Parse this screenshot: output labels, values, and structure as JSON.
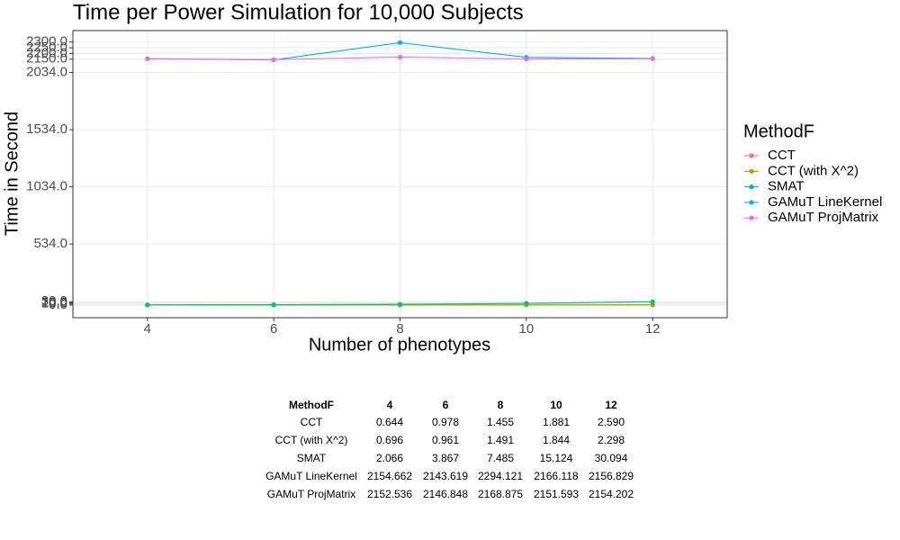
{
  "chart_data": {
    "type": "line",
    "title": "Time per Power Simulation for 10,000 Subjects",
    "x_label": "Number of phenotypes",
    "y_label": "Time in Second",
    "legend_title": "MethodF",
    "x": [
      4,
      6,
      8,
      10,
      12
    ],
    "series": [
      {
        "name": "CCT",
        "color": "#F8766D",
        "values": [
          0.644,
          0.978,
          1.455,
          1.881,
          2.59
        ]
      },
      {
        "name": "CCT (with X^2)",
        "color": "#A3A500",
        "values": [
          0.696,
          0.961,
          1.491,
          1.844,
          2.298
        ]
      },
      {
        "name": "SMAT",
        "color": "#00BF7D",
        "values": [
          2.066,
          3.867,
          7.485,
          15.124,
          30.094
        ]
      },
      {
        "name": "GAMuT LineKernel",
        "color": "#00B0F6",
        "values": [
          2154.662,
          2143.619,
          2294.121,
          2166.118,
          2156.829
        ]
      },
      {
        "name": "GAMuT ProjMatrix",
        "color": "#E76BF3",
        "values": [
          2152.536,
          2146.848,
          2168.875,
          2151.593,
          2154.202
        ]
      }
    ],
    "xlim": [
      2.82,
      13.18
    ],
    "xticks": [
      4,
      6,
      8,
      10,
      12
    ],
    "ylim": [
      -110,
      2400
    ],
    "yticks": [
      {
        "value": 0,
        "label": "0.0"
      },
      {
        "value": 10,
        "label": "10.0"
      },
      {
        "value": 20,
        "label": "20.0"
      },
      {
        "value": 30,
        "label": "30.0"
      },
      {
        "value": 534,
        "label": "534.0"
      },
      {
        "value": 1034,
        "label": "1034.0"
      },
      {
        "value": 1534,
        "label": "1534.0"
      },
      {
        "value": 2034,
        "label": "2034.0"
      },
      {
        "value": 2150,
        "label": "2150.0"
      },
      {
        "value": 2200,
        "label": "2200.0"
      },
      {
        "value": 2250,
        "label": "2250.0"
      },
      {
        "value": 2300,
        "label": "2300.0"
      }
    ],
    "grid": true,
    "legend": "right"
  },
  "table": {
    "header": [
      "MethodF",
      "4",
      "6",
      "8",
      "10",
      "12"
    ],
    "rows": [
      [
        "CCT",
        "0.644",
        "0.978",
        "1.455",
        "1.881",
        "2.590"
      ],
      [
        "CCT (with X^2)",
        "0.696",
        "0.961",
        "1.491",
        "1.844",
        "2.298"
      ],
      [
        "SMAT",
        "2.066",
        "3.867",
        "7.485",
        "15.124",
        "30.094"
      ],
      [
        "GAMuT LineKernel",
        "2154.662",
        "2143.619",
        "2294.121",
        "2166.118",
        "2156.829"
      ],
      [
        "GAMuT ProjMatrix",
        "2152.536",
        "2146.848",
        "2168.875",
        "2151.593",
        "2154.202"
      ]
    ]
  }
}
